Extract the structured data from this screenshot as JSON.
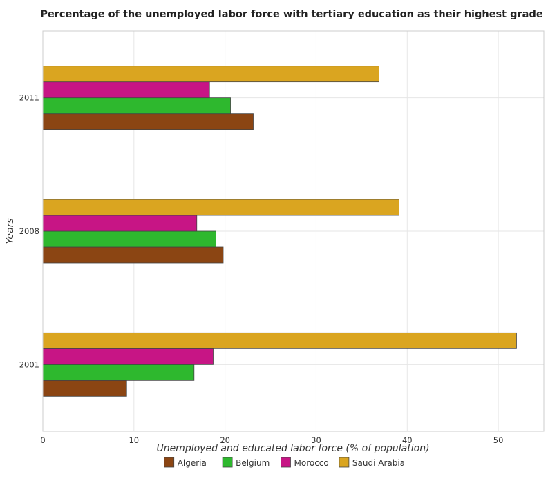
{
  "chart_data": {
    "type": "bar",
    "orientation": "horizontal",
    "title": "Percentage of the unemployed labor force with tertiary education as their highest grade",
    "xlabel": "Unemployed and educated labor force (% of population)",
    "ylabel": "Years",
    "categories": [
      "2001",
      "2008",
      "2011"
    ],
    "xlim": [
      0,
      55
    ],
    "xticks": [
      0,
      10,
      20,
      30,
      40,
      50
    ],
    "xtick_labels": [
      "0",
      "10",
      "20",
      "30",
      "40",
      "50"
    ],
    "grid": true,
    "legend_position": "bottom",
    "series": [
      {
        "name": "Algeria",
        "color": "#8B4513",
        "values": [
          9.2,
          19.8,
          23.1
        ]
      },
      {
        "name": "Belgium",
        "color": "#2EB82E",
        "values": [
          16.6,
          19.0,
          20.6
        ]
      },
      {
        "name": "Morocco",
        "color": "#C71585",
        "values": [
          18.7,
          16.9,
          18.3
        ]
      },
      {
        "name": "Saudi Arabia",
        "color": "#DAA520",
        "values": [
          52.0,
          39.1,
          36.9
        ]
      }
    ]
  }
}
